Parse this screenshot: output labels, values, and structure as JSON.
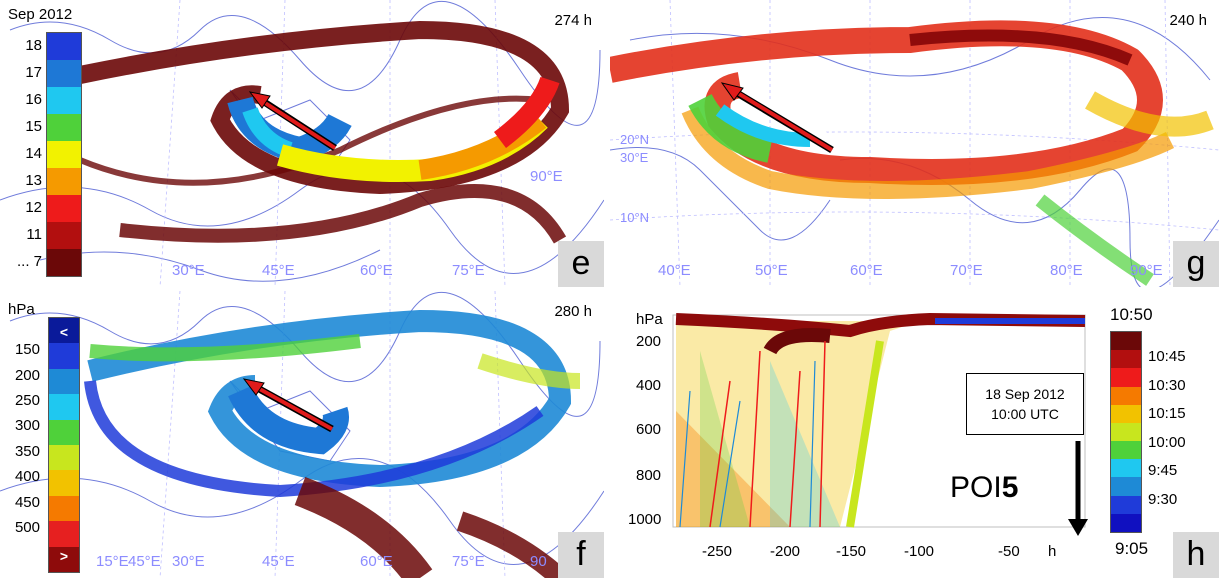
{
  "panels": {
    "e": {
      "letter": "e",
      "duration": "274 h",
      "lon_labels": [
        "30°E",
        "45°E",
        "60°E",
        "75°E",
        "90°E"
      ],
      "legend": {
        "title": "Sep 2012",
        "entries": [
          {
            "label": "18",
            "color": "#1f3bd9"
          },
          {
            "label": "17",
            "color": "#1e78d6"
          },
          {
            "label": "16",
            "color": "#1fc8f0"
          },
          {
            "label": "15",
            "color": "#4fd13a"
          },
          {
            "label": "14",
            "color": "#f2f200"
          },
          {
            "label": "13",
            "color": "#f59a00"
          },
          {
            "label": "12",
            "color": "#ee1b1b"
          },
          {
            "label": "11",
            "color": "#b20f0f"
          },
          {
            "label": "... 7",
            "color": "#6b0808"
          }
        ]
      }
    },
    "g": {
      "letter": "g",
      "duration": "240 h",
      "lon_labels": [
        "40°E",
        "50°E",
        "60°E",
        "70°E",
        "80°E",
        "90°E"
      ],
      "lat_labels": [
        "20°N",
        "30°E",
        "10°N"
      ]
    },
    "f": {
      "letter": "f",
      "duration": "280 h",
      "lon_labels": [
        "15°E",
        "45°E",
        "30°E",
        "45°E",
        "60°E",
        "75°E",
        "90"
      ],
      "legend": {
        "title": "hPa",
        "top_marker": "<",
        "bottom_marker": ">",
        "ticks": [
          "150",
          "200",
          "250",
          "300",
          "350",
          "400",
          "450",
          "500"
        ],
        "colors": [
          "#0a1a9a",
          "#1f3bd9",
          "#1e8ad6",
          "#1fc8f0",
          "#4fd13a",
          "#c8e61e",
          "#f2c200",
          "#f57a00",
          "#e62020",
          "#8e0b0b"
        ]
      }
    },
    "h": {
      "letter": "h",
      "y_unit": "hPa",
      "y_ticks": [
        "200",
        "400",
        "600",
        "800",
        "1000"
      ],
      "x_unit": "h",
      "x_ticks": [
        "-250",
        "-200",
        "-150",
        "-100",
        "-50"
      ],
      "callout_line1": "18 Sep 2012",
      "callout_line2": "10:00 UTC",
      "poi_prefix": "POI",
      "poi_number": "5",
      "legend": {
        "top_label": "10:50",
        "bottom_label": "9:05",
        "ticks": [
          "10:45",
          "10:30",
          "10:15",
          "10:00",
          "9:45",
          "9:30"
        ],
        "colors": [
          "#6b0808",
          "#b20f0f",
          "#ee1b1b",
          "#f57a00",
          "#f2c200",
          "#c8e61e",
          "#4fd13a",
          "#1fc8f0",
          "#1e8ad6",
          "#1f3bd9",
          "#1010c0"
        ]
      }
    }
  }
}
